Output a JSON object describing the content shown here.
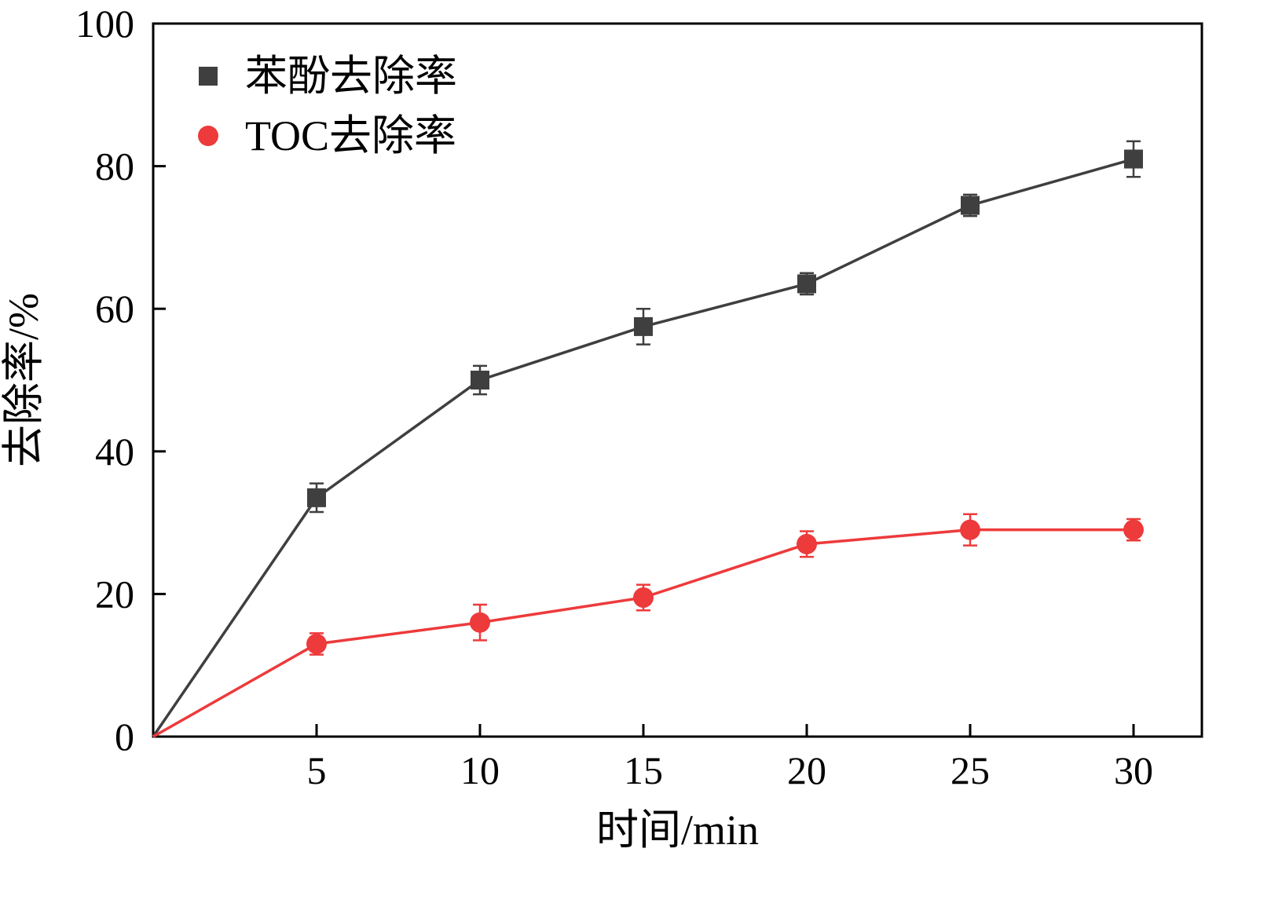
{
  "chart_data": {
    "type": "line",
    "title": "",
    "xlabel": "时间/min",
    "ylabel": "去除率/%",
    "x": [
      0,
      5,
      10,
      15,
      20,
      25,
      30
    ],
    "xticks": [
      5,
      10,
      15,
      20,
      25,
      30
    ],
    "yticks": [
      0,
      20,
      40,
      60,
      80,
      100
    ],
    "xlim": [
      0,
      32
    ],
    "ylim": [
      0,
      100
    ],
    "grid": false,
    "legend_position": "top-left",
    "axis_color": "#000000",
    "series": [
      {
        "name": "苯酚去除率",
        "color": "#3f3f3f",
        "marker": "square",
        "values": [
          0,
          33.5,
          50,
          57.5,
          63.5,
          74.5,
          81
        ],
        "errors": [
          0,
          2,
          2,
          2.5,
          1.5,
          1.5,
          2.5
        ]
      },
      {
        "name": "TOC去除率",
        "color": "#ed3a3b",
        "marker": "circle",
        "values": [
          0,
          13,
          16,
          19.5,
          27,
          29,
          29
        ],
        "errors": [
          0,
          1.5,
          2.5,
          1.8,
          1.8,
          2.2,
          1.5
        ]
      }
    ]
  }
}
